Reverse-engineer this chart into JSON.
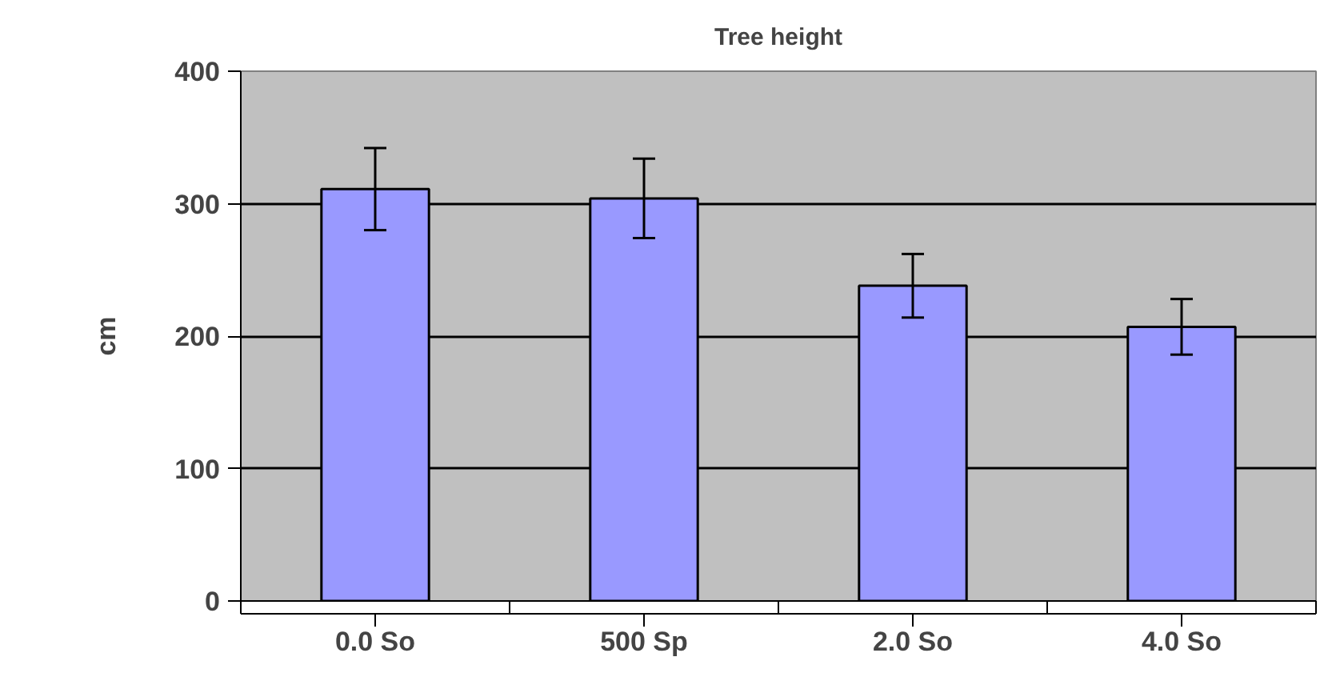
{
  "chart_data": {
    "type": "bar",
    "title": "Tree height",
    "ylabel": "cm",
    "categories": [
      "0.0 So",
      "500 Sp",
      "2.0 So",
      "4.0 So"
    ],
    "values": [
      311,
      304,
      238,
      207
    ],
    "errors": [
      31,
      30,
      24,
      21
    ],
    "color": "#9999ff",
    "ylim": [
      0,
      400
    ],
    "yticks": [
      0,
      100,
      200,
      300,
      400
    ],
    "grid": "y"
  }
}
